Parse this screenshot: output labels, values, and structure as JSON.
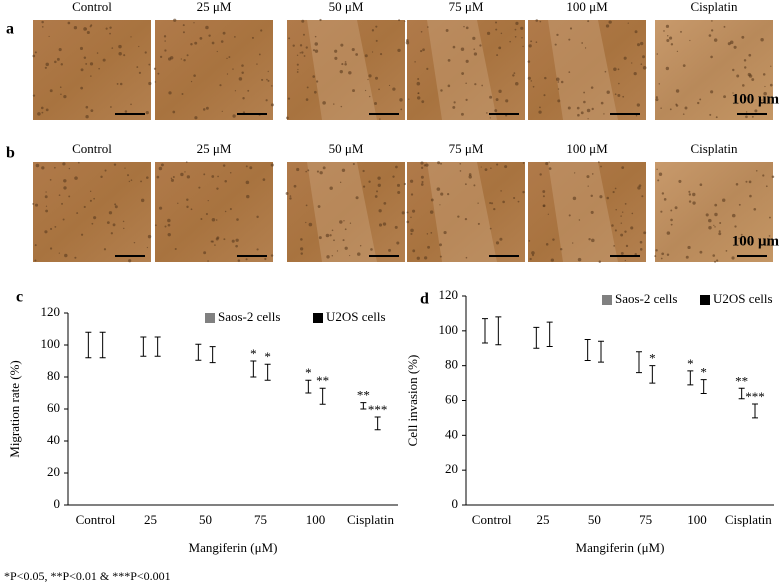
{
  "panel_a": {
    "label": "a",
    "columns": [
      "Control",
      "25 μM",
      "50 μM",
      "75 μM",
      "100 μM",
      "Cisplatin"
    ],
    "scale": "100 μm"
  },
  "panel_b": {
    "label": "b",
    "columns": [
      "Control",
      "25 μM",
      "50 μM",
      "75 μM",
      "100 μM",
      "Cisplatin"
    ],
    "scale": "100 μm"
  },
  "chart_data": [
    {
      "type": "bar",
      "panel_label": "c",
      "ylabel": "Migration rate (%)",
      "xlabel": "Mangiferin (μM)",
      "categories": [
        "Control",
        "25",
        "50",
        "75",
        "100",
        "Cisplatin"
      ],
      "series": [
        {
          "name": "Saos-2 cells",
          "color": "#808080",
          "values": [
            100,
            99,
            95.5,
            85,
            74,
            62
          ],
          "errors": [
            8,
            6,
            5,
            5,
            4,
            2
          ],
          "significance": [
            null,
            null,
            null,
            "*",
            "*",
            "**"
          ]
        },
        {
          "name": "U2OS cells",
          "color": "#000000",
          "values": [
            100,
            99,
            94,
            83,
            68,
            51
          ],
          "errors": [
            8,
            6,
            5,
            5,
            5,
            4
          ],
          "significance": [
            null,
            null,
            null,
            "*",
            "**",
            "***"
          ]
        }
      ],
      "ylim": [
        0,
        120
      ],
      "yticks": [
        0,
        20,
        40,
        60,
        80,
        100,
        120
      ],
      "grid": false
    },
    {
      "type": "bar",
      "panel_label": "d",
      "ylabel": "Cell invasion (%)",
      "xlabel": "Mangiferin (μM)",
      "categories": [
        "Control",
        "25",
        "50",
        "75",
        "100",
        "Cisplatin"
      ],
      "series": [
        {
          "name": "Saos-2 cells",
          "color": "#808080",
          "values": [
            100,
            96,
            89,
            82,
            73,
            64
          ],
          "errors": [
            7,
            6,
            6,
            6,
            4,
            3
          ],
          "significance": [
            null,
            null,
            null,
            null,
            "*",
            "**"
          ]
        },
        {
          "name": "U2OS cells",
          "color": "#000000",
          "values": [
            100,
            98,
            88,
            75,
            68,
            54
          ],
          "errors": [
            8,
            7,
            6,
            5,
            4,
            4
          ],
          "significance": [
            null,
            null,
            null,
            "*",
            "*",
            "***"
          ]
        }
      ],
      "ylim": [
        0,
        120
      ],
      "yticks": [
        0,
        20,
        40,
        60,
        80,
        100,
        120
      ],
      "grid": false
    }
  ],
  "footnote": "*P<0.05, **P<0.01 & ***P<0.001"
}
